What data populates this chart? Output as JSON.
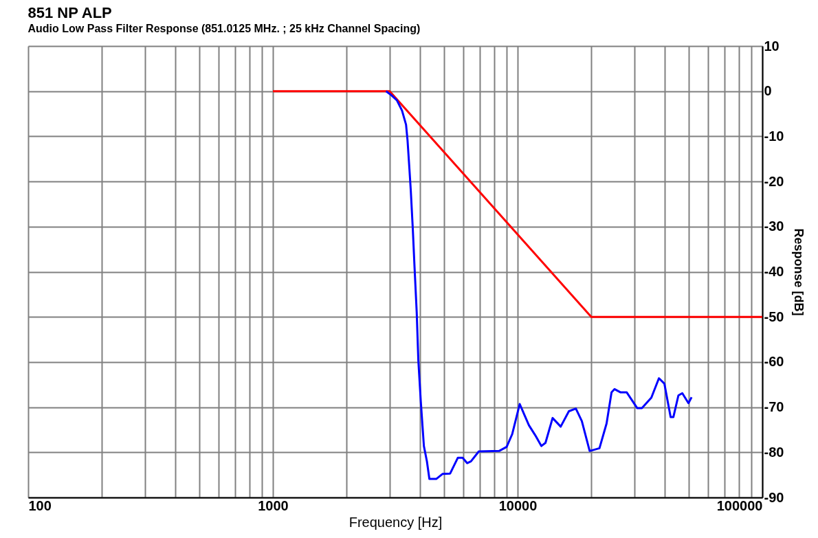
{
  "chart_data": {
    "type": "line",
    "title": "851 NP ALP",
    "subtitle": "Audio Low Pass Filter Response (851.0125 MHz. ; 25 kHz Channel Spacing)",
    "xlabel": "Frequency [Hz]",
    "ylabel": "Response [dB]",
    "log": "x",
    "grid": true,
    "line_style": "solid",
    "marker": "none",
    "xlim": [
      100,
      100000
    ],
    "ylim": [
      -90,
      10
    ],
    "xticks": [
      100,
      {
        "value": 200,
        "label": null
      },
      {
        "value": 300,
        "label": null
      },
      {
        "value": 400,
        "label": null
      },
      {
        "value": 500,
        "label": null
      },
      {
        "value": 600,
        "label": null
      },
      {
        "value": 700,
        "label": null
      },
      {
        "value": 800,
        "label": null
      },
      {
        "value": 900,
        "label": null
      },
      1000,
      {
        "value": 2000,
        "label": null
      },
      {
        "value": 3000,
        "label": null
      },
      {
        "value": 4000,
        "label": null
      },
      {
        "value": 5000,
        "label": null
      },
      {
        "value": 6000,
        "label": null
      },
      {
        "value": 7000,
        "label": null
      },
      {
        "value": 8000,
        "label": null
      },
      {
        "value": 9000,
        "label": null
      },
      10000,
      {
        "value": 20000,
        "label": null
      },
      {
        "value": 30000,
        "label": null
      },
      {
        "value": 40000,
        "label": null
      },
      {
        "value": 50000,
        "label": null
      },
      {
        "value": 60000,
        "label": null
      },
      {
        "value": 70000,
        "label": null
      },
      {
        "value": 80000,
        "label": null
      },
      {
        "value": 90000,
        "label": null
      },
      100000
    ],
    "yticks": [
      -90,
      -80,
      -70,
      -60,
      -50,
      -40,
      -30,
      -20,
      -10,
      0,
      10
    ],
    "series": [
      {
        "color": "#ff0000",
        "x": [
          1000,
          3000,
          20000,
          100000
        ],
        "values": [
          0,
          0,
          -50,
          -50
        ]
      },
      {
        "color": "#0000ff",
        "x": [
          2900,
          3050,
          3210,
          3370,
          3500,
          3550,
          3610,
          3660,
          3730,
          3790,
          3870,
          3930,
          4020,
          4140,
          4260,
          4360,
          4650,
          4930,
          5300,
          5700,
          5960,
          6220,
          6450,
          6940,
          8400,
          9020,
          9500,
          10200,
          11120,
          11800,
          12500,
          13000,
          13900,
          15000,
          16200,
          17300,
          18300,
          19700,
          21600,
          23100,
          24200,
          24900,
          26300,
          27900,
          30800,
          32200,
          35200,
          37800,
          39800,
          42200,
          43300,
          45400,
          47100,
          49900,
          51400
        ],
        "values": [
          0,
          -0.9,
          -2,
          -4.3,
          -7.4,
          -10.9,
          -16.9,
          -22,
          -30.5,
          -38.8,
          -49,
          -59.7,
          -68.6,
          -78.6,
          -82,
          -85.9,
          -85.9,
          -84.8,
          -84.7,
          -81.2,
          -81.2,
          -82.4,
          -82,
          -79.8,
          -79.7,
          -78.8,
          -76,
          -69.3,
          -74,
          -76.2,
          -78.6,
          -77.9,
          -72.4,
          -74.3,
          -70.9,
          -70.3,
          -73.1,
          -79.7,
          -79.1,
          -73.6,
          -66.7,
          -66,
          -66.7,
          -66.7,
          -70.2,
          -70.2,
          -67.9,
          -63.6,
          -64.8,
          -72.2,
          -72.2,
          -67.4,
          -66.9,
          -69.1,
          -67.8
        ]
      }
    ]
  }
}
